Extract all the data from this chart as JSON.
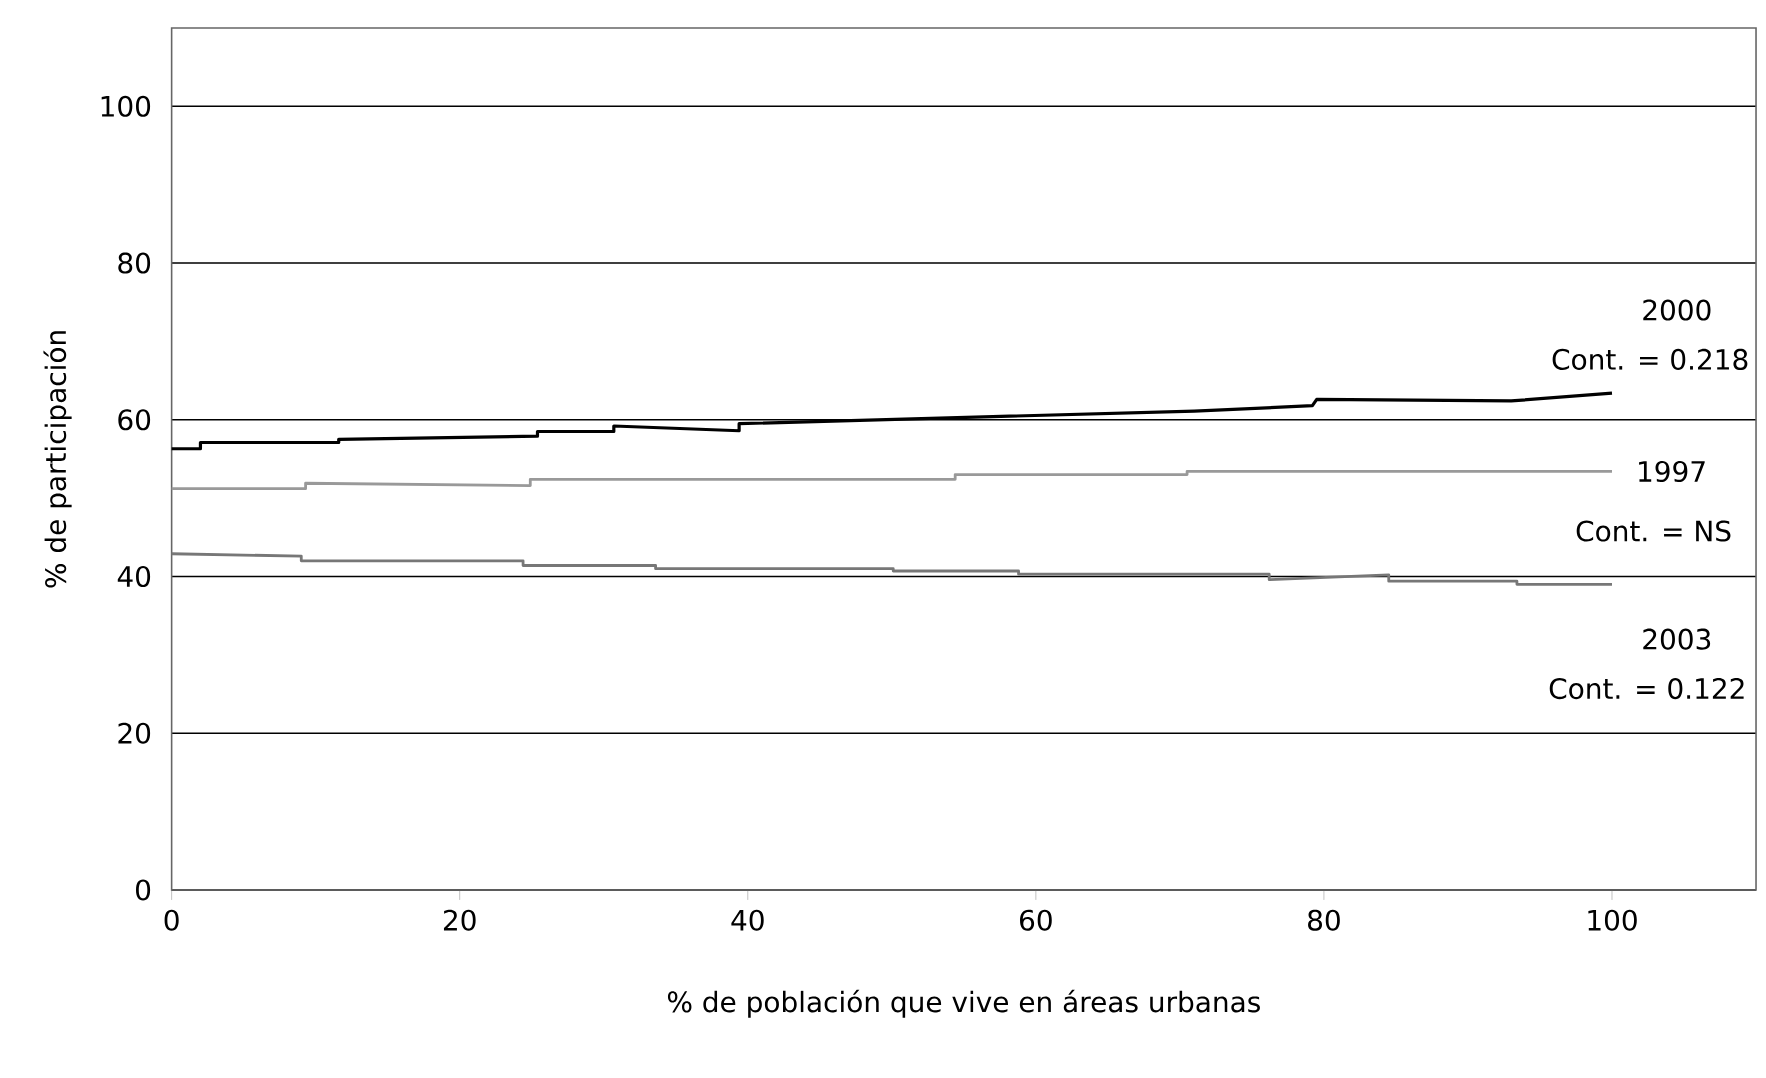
{
  "chart_data": {
    "type": "line",
    "xlabel": "% de población que vive en áreas urbanas",
    "ylabel": "% de participación",
    "xlim": [
      0,
      110
    ],
    "ylim": [
      0,
      110
    ],
    "xticks": [
      0,
      20,
      40,
      60,
      80,
      100
    ],
    "yticks": [
      0,
      20,
      40,
      60,
      80,
      100
    ],
    "grid": "y",
    "marker": "none",
    "line_style": "solid",
    "annotations": [
      "Cont. = 0.218",
      "Cont. = NS",
      "Cont. = 0.122"
    ],
    "series": [
      {
        "name": "2000",
        "color": "#000000",
        "x": [
          0,
          2,
          2,
          11.6,
          11.6,
          25.4,
          25.4,
          30.7,
          30.7,
          39.4,
          39.4,
          57,
          71,
          79.2,
          79.5,
          93,
          100
        ],
        "values": [
          56.3,
          56.3,
          57.1,
          57.1,
          57.5,
          57.9,
          58.5,
          58.5,
          59.2,
          58.6,
          59.5,
          60.4,
          61.1,
          61.8,
          62.6,
          62.4,
          63.4
        ]
      },
      {
        "name": "1997",
        "color": "#999999",
        "x": [
          0,
          9.3,
          9.3,
          24.9,
          24.9,
          54.4,
          54.4,
          70.5,
          70.5,
          100
        ],
        "values": [
          51.2,
          51.2,
          51.9,
          51.6,
          52.4,
          52.4,
          53.0,
          53.0,
          53.4,
          53.4
        ]
      },
      {
        "name": "2003",
        "color": "#777777",
        "x": [
          0,
          9,
          9,
          24.4,
          24.4,
          33.6,
          33.6,
          50.1,
          50.1,
          58.8,
          58.8,
          76.2,
          76.2,
          84.5,
          84.5,
          93.4,
          93.4,
          100
        ],
        "values": [
          42.9,
          42.6,
          42.0,
          42.0,
          41.4,
          41.4,
          41.0,
          41.0,
          40.7,
          40.7,
          40.3,
          40.3,
          39.6,
          40.2,
          39.4,
          39.4,
          39.0,
          39.0
        ]
      }
    ]
  }
}
